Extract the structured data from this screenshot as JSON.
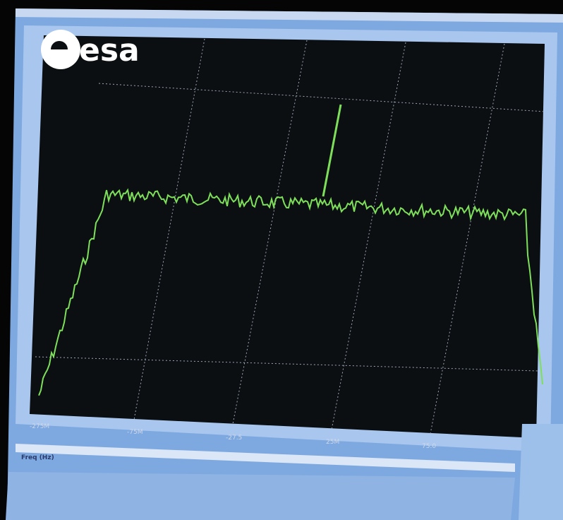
{
  "logo": {
    "text": "esa"
  },
  "plot": {
    "x_ticks": [
      "-275M",
      "-75M",
      "-27.5",
      "25M",
      "75.0"
    ],
    "x_label": "Freq (Hz)"
  }
}
